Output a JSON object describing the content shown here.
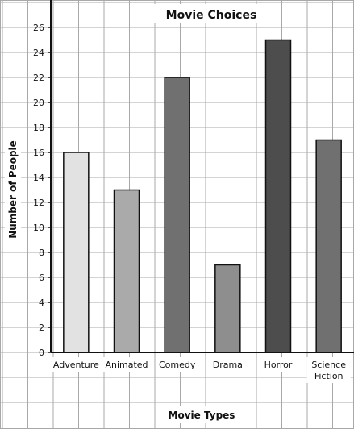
{
  "chart_data": {
    "type": "bar",
    "title": "Movie Choices",
    "xlabel": "Movie Types",
    "ylabel": "Number of People",
    "categories": [
      [
        "Adventure"
      ],
      [
        "Animated"
      ],
      [
        "Comedy"
      ],
      [
        "Drama"
      ],
      [
        "Horror"
      ],
      [
        "Science",
        "Fiction"
      ]
    ],
    "values": [
      16,
      13,
      22,
      7,
      25,
      17
    ],
    "bar_colors": [
      "#e2e2e2",
      "#aaaaaa",
      "#707070",
      "#8e8e8e",
      "#4d4d4d",
      "#707070"
    ],
    "ylim": [
      0,
      26
    ],
    "yticks": [
      0,
      2,
      4,
      6,
      8,
      10,
      12,
      14,
      16,
      18,
      20,
      22,
      24,
      26
    ],
    "grid": true,
    "legend": "none"
  }
}
